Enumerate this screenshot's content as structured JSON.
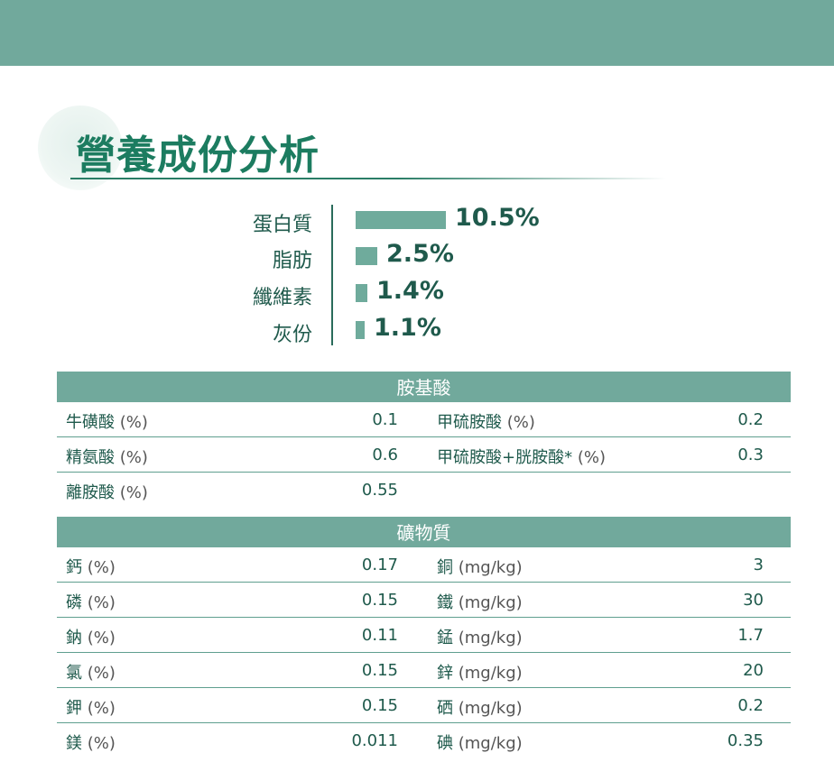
{
  "title": "營養成份分析",
  "nutrients": [
    {
      "label": "蛋白質",
      "value": "10.5%",
      "amount": 10.5
    },
    {
      "label": "脂肪",
      "value": "2.5%",
      "amount": 2.5
    },
    {
      "label": "纖維素",
      "value": "1.4%",
      "amount": 1.4
    },
    {
      "label": "灰份",
      "value": "1.1%",
      "amount": 1.1
    }
  ],
  "amino": {
    "header": "胺基酸",
    "rows": [
      {
        "l1": "牛磺酸",
        "u1": "(%)",
        "v1": "0.1",
        "l2": "甲硫胺酸",
        "u2": "(%)",
        "v2": "0.2"
      },
      {
        "l1": "精氨酸",
        "u1": "(%)",
        "v1": "0.6",
        "l2": "甲硫胺酸+胱胺酸*",
        "u2": "(%)",
        "v2": "0.3"
      },
      {
        "l1": "離胺酸",
        "u1": "(%)",
        "v1": "0.55",
        "l2": "",
        "u2": "",
        "v2": ""
      }
    ]
  },
  "minerals": {
    "header": "礦物質",
    "rows": [
      {
        "l1": "鈣",
        "u1": "(%)",
        "v1": "0.17",
        "l2": "銅",
        "u2": "(mg/kg)",
        "v2": "3"
      },
      {
        "l1": "磷",
        "u1": "(%)",
        "v1": "0.15",
        "l2": "鐵",
        "u2": "(mg/kg)",
        "v2": "30"
      },
      {
        "l1": "鈉",
        "u1": "(%)",
        "v1": "0.11",
        "l2": "錳",
        "u2": "(mg/kg)",
        "v2": "1.7"
      },
      {
        "l1": "氯",
        "u1": "(%)",
        "v1": "0.15",
        "l2": "鋅",
        "u2": "(mg/kg)",
        "v2": "20"
      },
      {
        "l1": "鉀",
        "u1": "(%)",
        "v1": "0.15",
        "l2": "硒",
        "u2": "(mg/kg)",
        "v2": "0.2"
      },
      {
        "l1": "鎂",
        "u1": "(%)",
        "v1": "0.011",
        "l2": "碘",
        "u2": "(mg/kg)",
        "v2": "0.35"
      }
    ]
  },
  "colors": {
    "band": "#71a99c",
    "bar": "#6fab9c",
    "title": "#1c7c60",
    "text": "#1f5a4c"
  }
}
